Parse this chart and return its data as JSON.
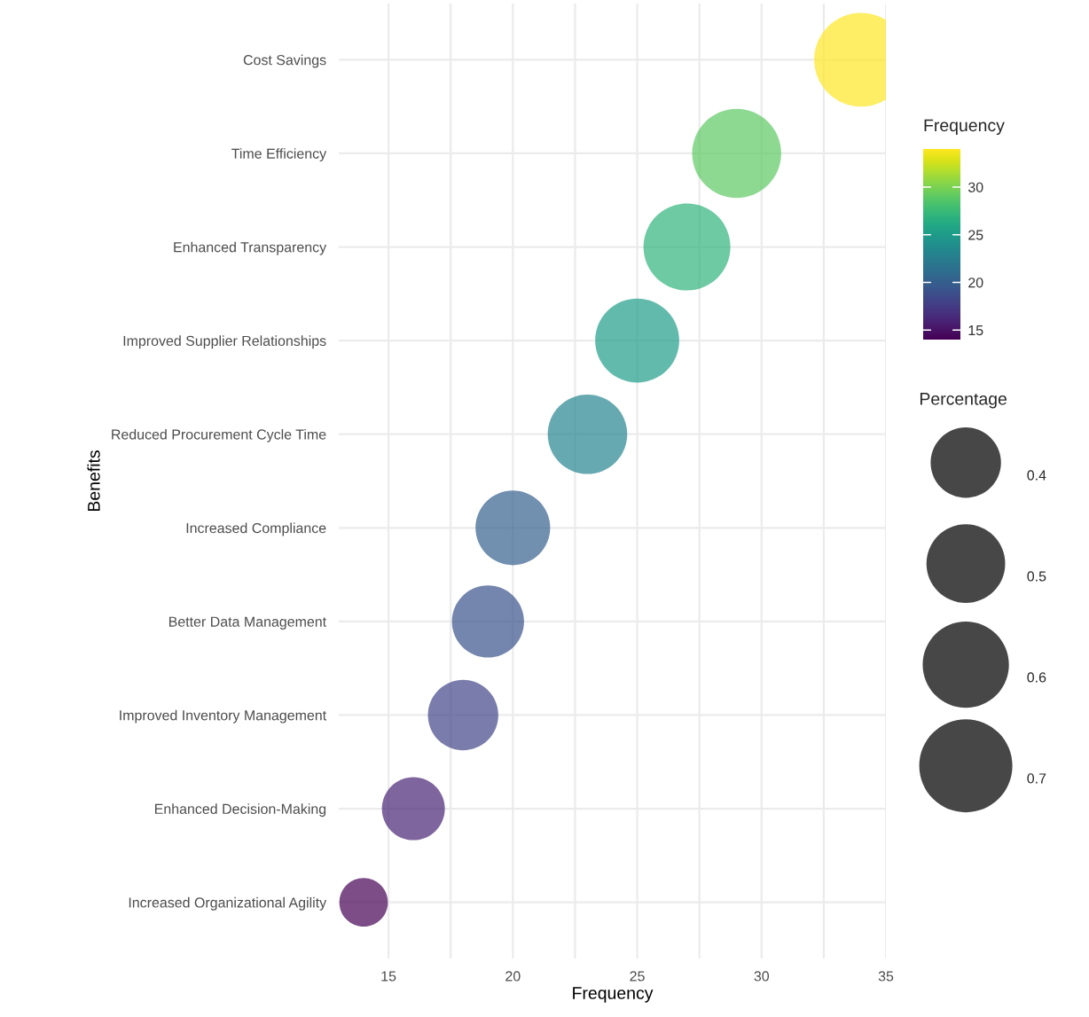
{
  "chart_data": {
    "type": "bubble",
    "xlabel": "Frequency",
    "ylabel": "Benefits",
    "clabel": "Frequency",
    "legend_title": "Percentage",
    "categories": [
      "Cost Savings",
      "Time Efficiency",
      "Enhanced Transparency",
      "Improved Supplier Relationships",
      "Reduced Procurement Cycle Time",
      "Increased Compliance",
      "Better Data Management",
      "Improved Inventory Management",
      "Enhanced Decision-Making",
      "Increased Organizational Agility"
    ],
    "orientation": "horizontal",
    "values": [
      34,
      29,
      27,
      25,
      23,
      20,
      19,
      18,
      16,
      14
    ],
    "cvalues": [
      34,
      29,
      27,
      25,
      23,
      20,
      19,
      18,
      16,
      14
    ],
    "sizes": [
      0.71,
      0.64,
      0.61,
      0.57,
      0.51,
      0.45,
      0.42,
      0.4,
      0.32,
      0.19
    ],
    "size_legend": [
      0.4,
      0.5,
      0.6,
      0.7
    ],
    "clim": [
      14,
      34
    ],
    "cticks": [
      15,
      20,
      25,
      30
    ],
    "xlim": [
      13,
      35
    ],
    "xticks": [
      15,
      {
        "value": 17.5,
        "label": null
      },
      20,
      {
        "value": 22.5,
        "label": null
      },
      25,
      {
        "value": 27.5,
        "label": null
      },
      30,
      {
        "value": 32.5,
        "label": null
      },
      35
    ],
    "grid": true
  }
}
